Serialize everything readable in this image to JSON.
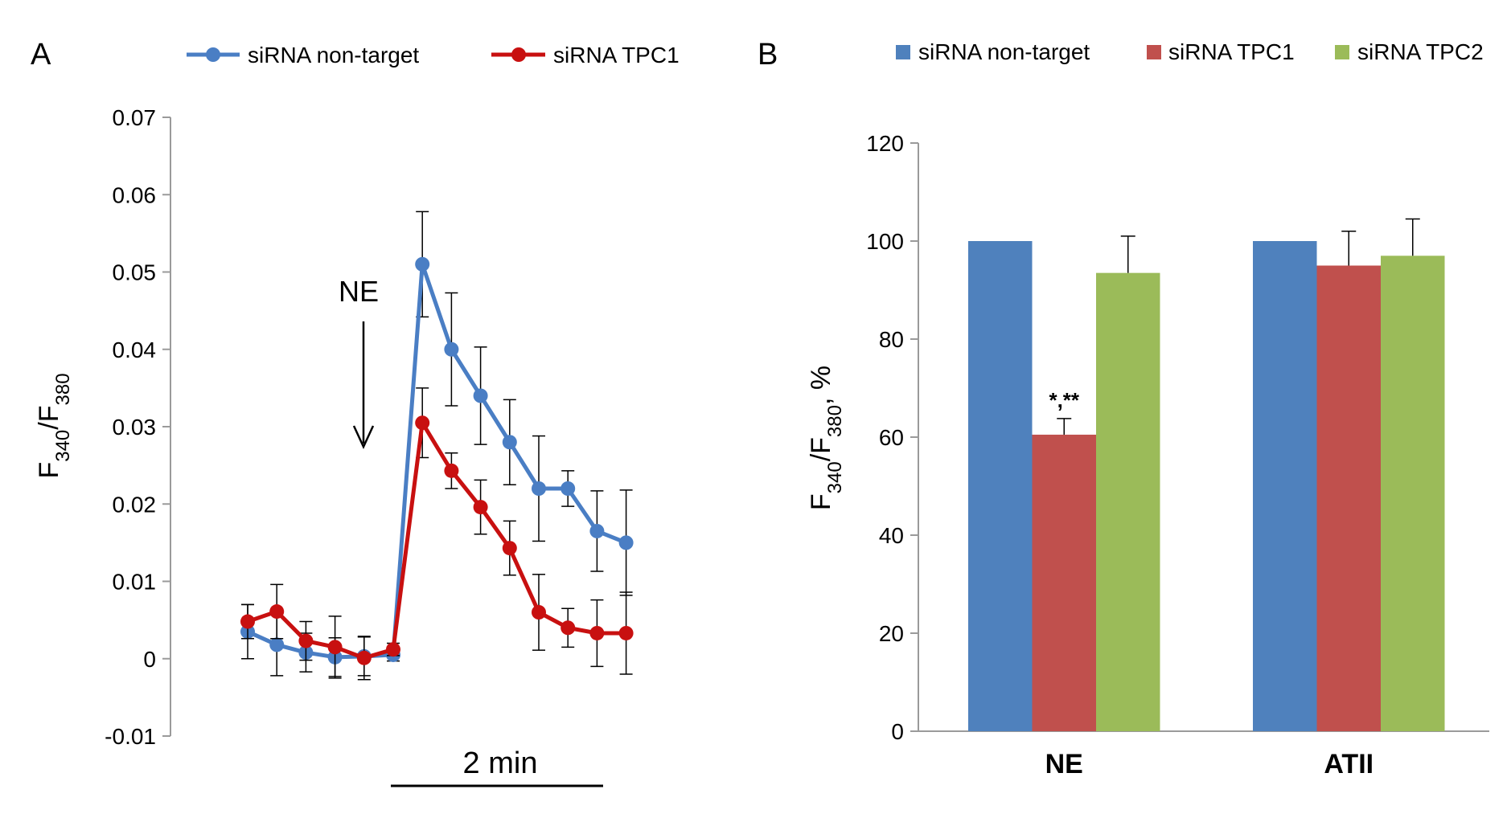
{
  "chart_data": [
    {
      "panel": "A",
      "type": "line",
      "legend": [
        "siRNA non-target",
        "siRNA TPC1"
      ],
      "ylabel": {
        "main": "F",
        "sub1": "340",
        "sep": "/F",
        "sub2": "380"
      },
      "ylim": [
        -0.01,
        0.07
      ],
      "yticks": [
        "-0.01",
        "0",
        "0.01",
        "0.02",
        "0.03",
        "0.04",
        "0.05",
        "0.06",
        "0.07"
      ],
      "yticks_values": [
        -0.01,
        0,
        0.01,
        0.02,
        0.03,
        0.04,
        0.05,
        0.06,
        0.07
      ],
      "x": [
        1,
        2,
        3,
        4,
        5,
        6,
        7,
        8,
        9,
        10,
        11,
        12,
        13,
        14
      ],
      "series": [
        {
          "name": "siRNA non-target",
          "color": "#4a7ec4",
          "values": [
            0.0035,
            0.0018,
            0.0008,
            0.0002,
            0.0003,
            0.0005,
            0.051,
            0.04,
            0.034,
            0.028,
            0.022,
            0.022,
            0.0165,
            0.015
          ],
          "errors": [
            0.0035,
            0.004,
            0.0025,
            0.0025,
            0.0025,
            0.0008,
            0.0068,
            0.0073,
            0.0063,
            0.0055,
            0.0068,
            0.0023,
            0.0052,
            0.0068
          ]
        },
        {
          "name": "siRNA TPC1",
          "color": "#c81010",
          "values": [
            0.0048,
            0.0061,
            0.0023,
            0.0015,
            0.0001,
            0.0012,
            0.0305,
            0.0243,
            0.0196,
            0.0143,
            0.006,
            0.004,
            0.0033,
            0.0033
          ],
          "errors": [
            0.0022,
            0.0035,
            0.0025,
            0.004,
            0.0028,
            0.0008,
            0.0045,
            0.0023,
            0.0035,
            0.0035,
            0.0049,
            0.0025,
            0.0043,
            0.0053
          ]
        }
      ],
      "annotation": "NE",
      "scale_bar_label": "2 min"
    },
    {
      "panel": "B",
      "type": "bar",
      "categories": [
        "NE",
        "ATII"
      ],
      "legend": [
        "siRNA non-target",
        "siRNA TPC1",
        "siRNA TPC2"
      ],
      "ylabel": {
        "main": "F",
        "sub1": "340",
        "sep": "/F",
        "sub2": "380",
        "suffix": ", %"
      },
      "ylim": [
        0,
        120
      ],
      "yticks": [
        "0",
        "20",
        "40",
        "60",
        "80",
        "100",
        "120"
      ],
      "yticks_values": [
        0,
        20,
        40,
        60,
        80,
        100,
        120
      ],
      "series": [
        {
          "name": "siRNA non-target",
          "color": "#4f81bd",
          "values": [
            100,
            100
          ],
          "errors": [
            0,
            0
          ]
        },
        {
          "name": "siRNA TPC1",
          "color": "#c0504d",
          "values": [
            60.5,
            95
          ],
          "errors": [
            3.3,
            7
          ]
        },
        {
          "name": "siRNA TPC2",
          "color": "#9bbb59",
          "values": [
            93.5,
            97
          ],
          "errors": [
            7.5,
            7.5
          ]
        }
      ],
      "significance": "*,**"
    }
  ]
}
